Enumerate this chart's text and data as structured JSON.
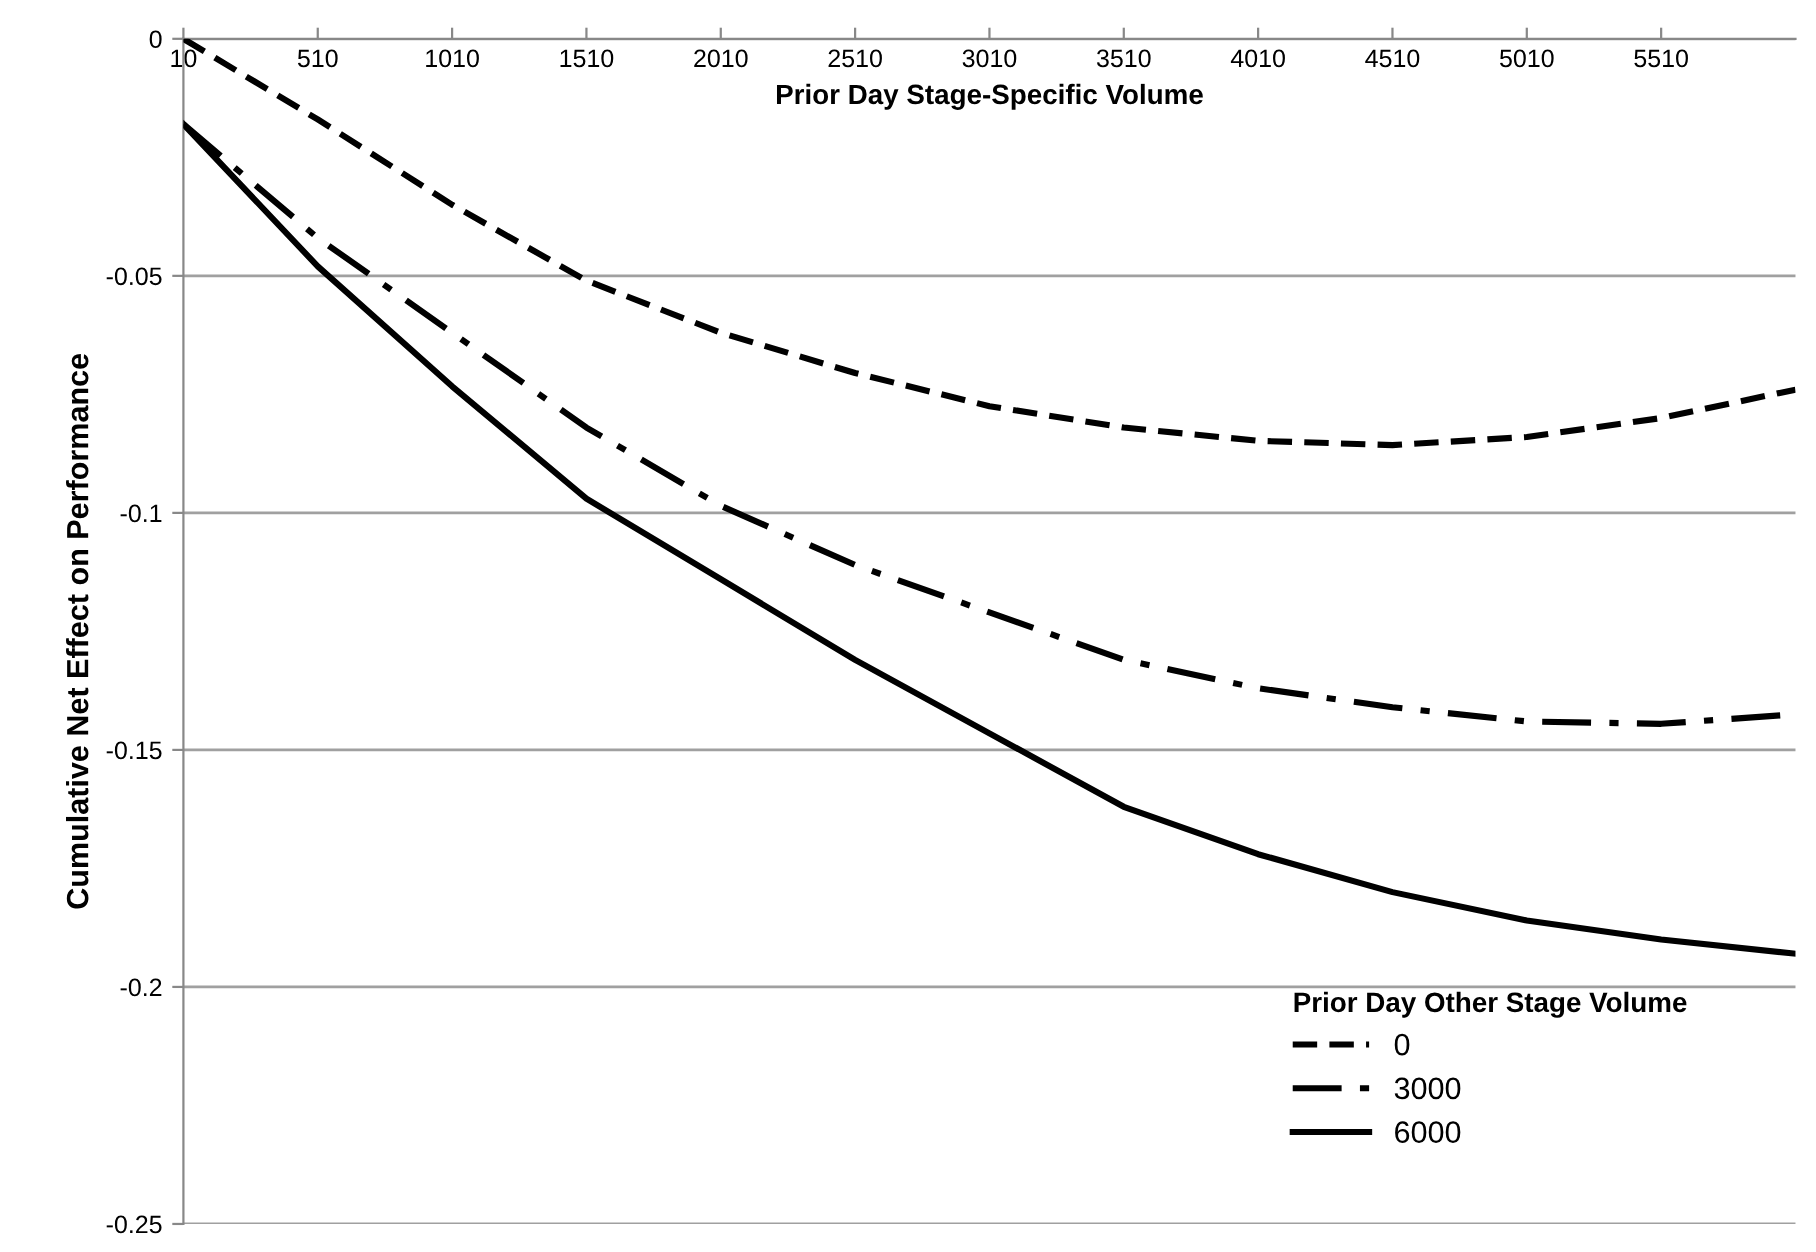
{
  "chart_data": {
    "type": "line",
    "xlabel": "Prior Day Stage-Specific Volume",
    "ylabel": "Cumulative Net Effect on Performance",
    "legend_title": "Prior Day Other Stage Volume",
    "x": [
      10,
      510,
      1010,
      1510,
      2010,
      2510,
      3010,
      3510,
      4010,
      4510,
      5010,
      5510,
      6010
    ],
    "series": [
      {
        "name": "0",
        "color": "#000000",
        "line_style": "dashed",
        "values": [
          0,
          -0.017,
          -0.035,
          -0.051,
          -0.062,
          -0.0705,
          -0.0775,
          -0.082,
          -0.0848,
          -0.0857,
          -0.084,
          -0.08,
          -0.074
        ]
      },
      {
        "name": "3000",
        "color": "#000000",
        "line_style": "dashdot",
        "values": [
          -0.018,
          -0.042,
          -0.062,
          -0.082,
          -0.0985,
          -0.111,
          -0.121,
          -0.131,
          -0.137,
          -0.141,
          -0.144,
          -0.1445,
          -0.1425
        ]
      },
      {
        "name": "6000",
        "color": "#000000",
        "line_style": "solid",
        "values": [
          -0.018,
          -0.048,
          -0.0733,
          -0.097,
          -0.114,
          -0.131,
          -0.1465,
          -0.162,
          -0.172,
          -0.18,
          -0.186,
          -0.19,
          -0.193
        ]
      }
    ],
    "xlim": [
      10,
      6010
    ],
    "xticks": [
      10,
      510,
      1010,
      1510,
      2010,
      2510,
      3010,
      3510,
      4010,
      4510,
      5010,
      5510
    ],
    "ylim": [
      -0.25,
      0
    ],
    "yticks": [
      0,
      -0.05,
      -0.1,
      -0.15,
      -0.2,
      -0.25
    ],
    "grid": "y",
    "legend": "bottom right"
  }
}
